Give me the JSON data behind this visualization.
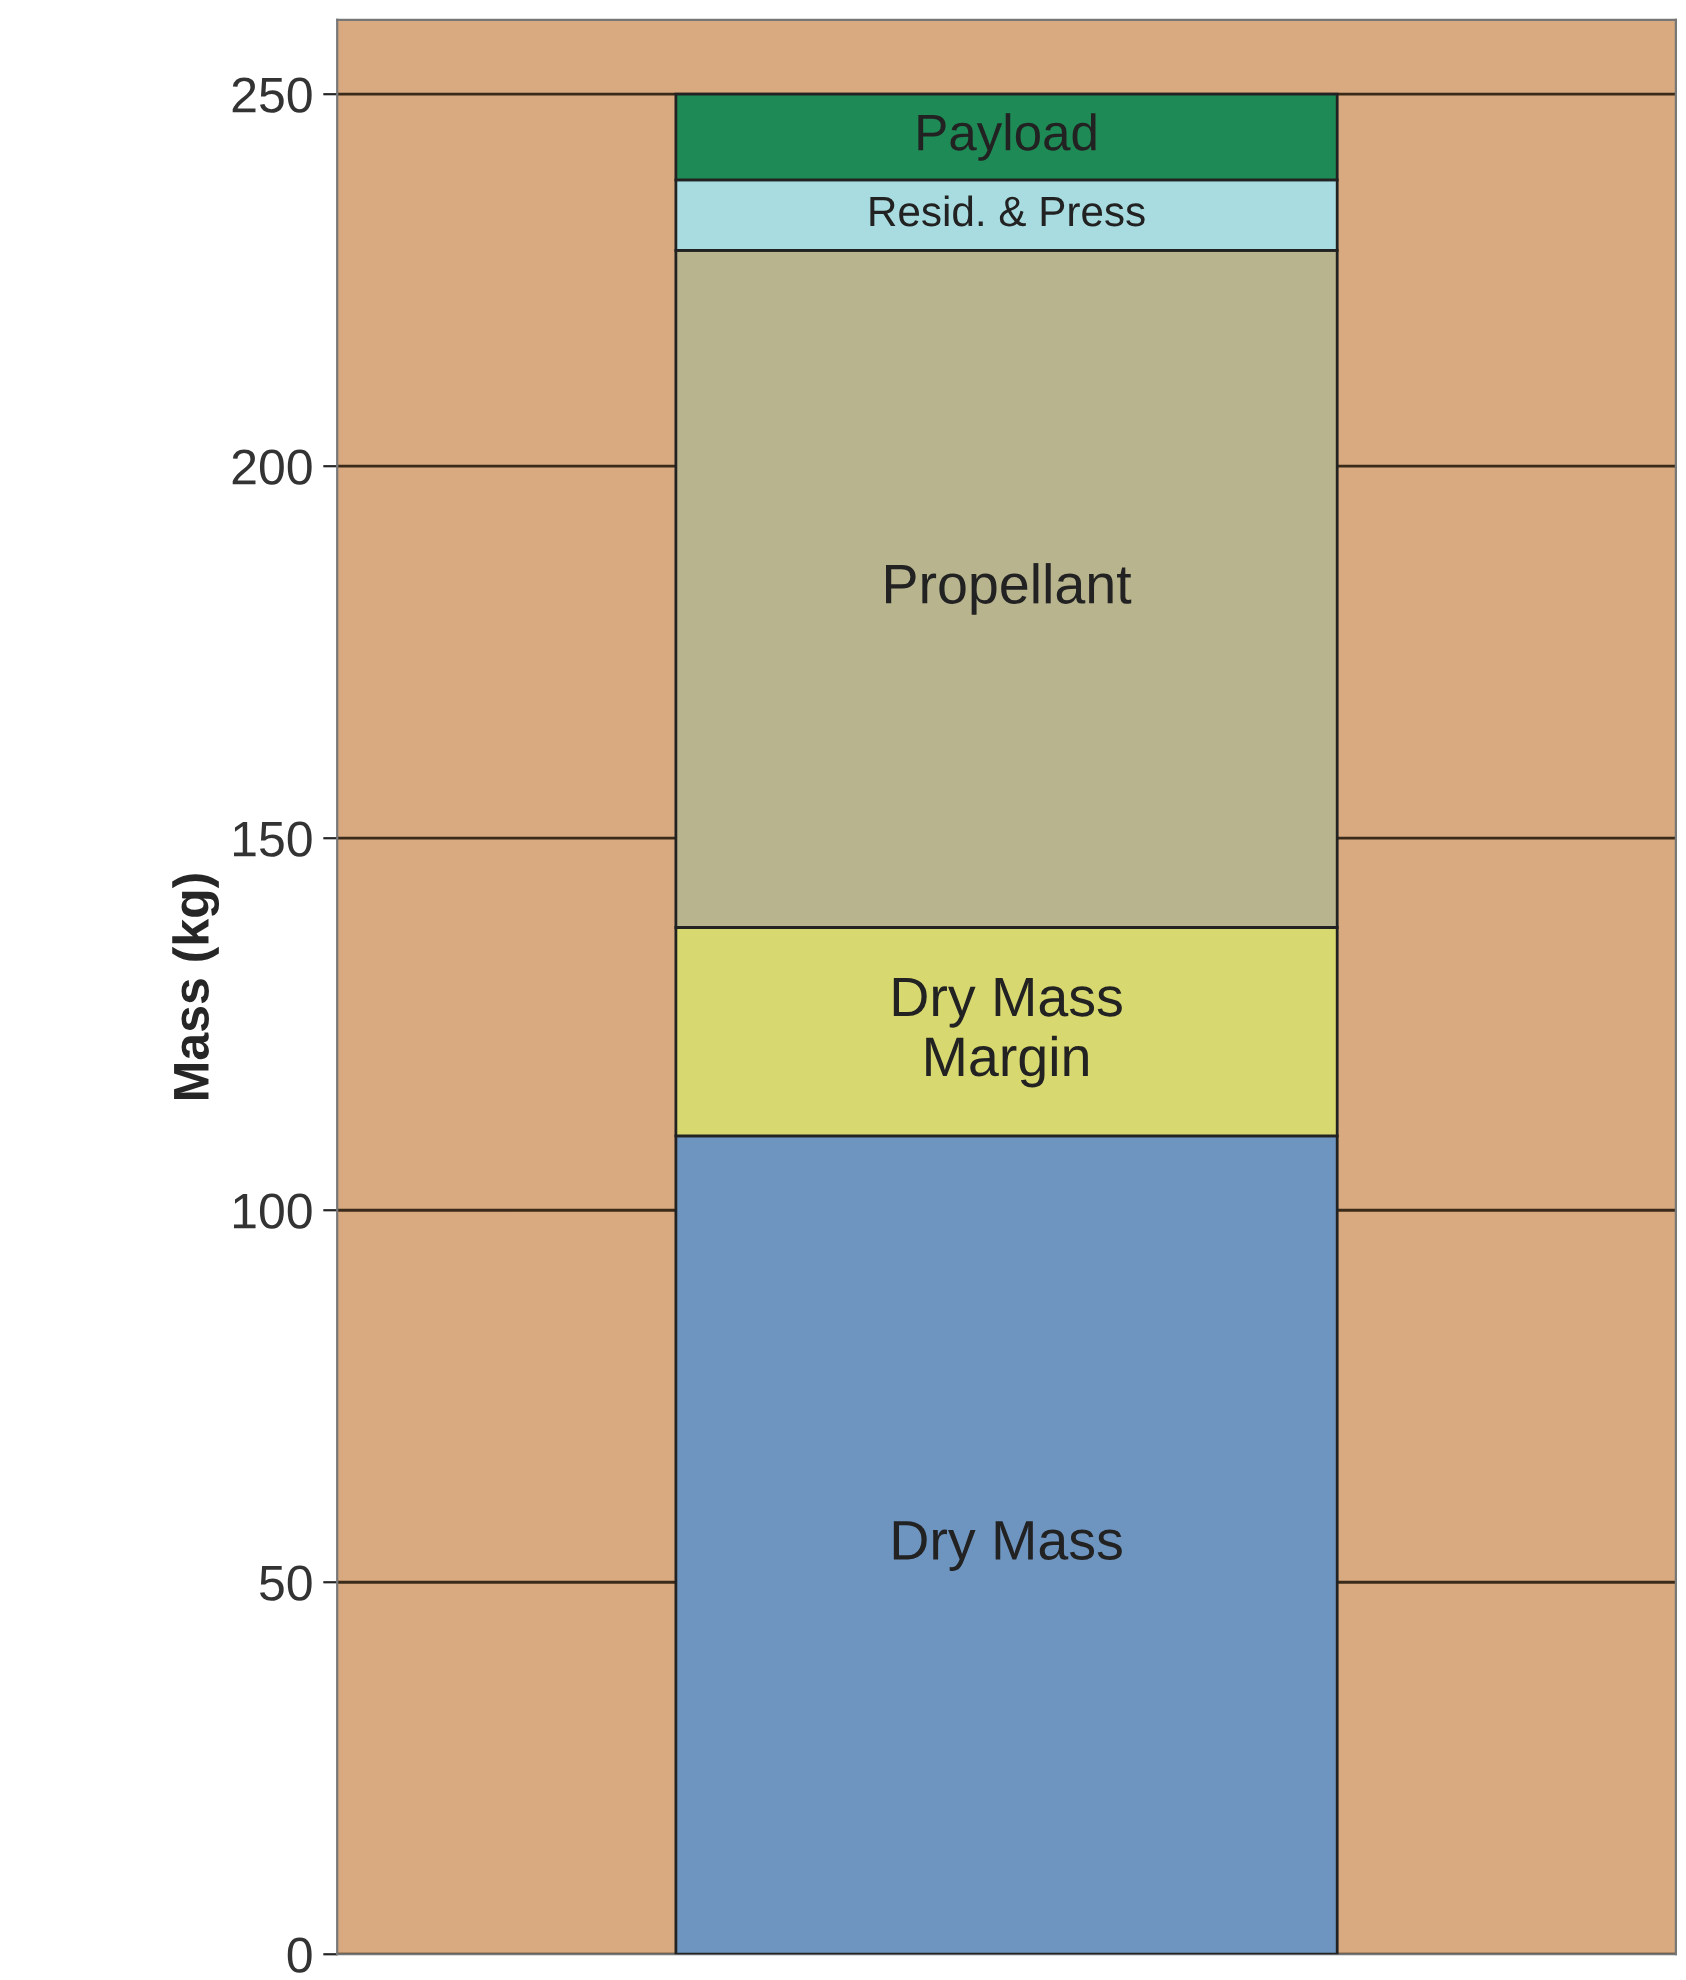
{
  "chart_data": {
    "type": "bar",
    "stacked": true,
    "categories": [
      null
    ],
    "ylabel": "Mass (kg)",
    "series": [
      {
        "name": "Dry Mass",
        "color": "#6e95c0",
        "values": [
          110
        ]
      },
      {
        "name": "Dry Mass\nMargin",
        "color": "#d8d870",
        "values": [
          28
        ]
      },
      {
        "name": "Propellant",
        "color": "#b8b48e",
        "values": [
          91
        ]
      },
      {
        "name": "Resid. & Press",
        "color": "#a8dce0",
        "values": [
          9.5
        ]
      },
      {
        "name": "Payload",
        "color": "#1e8a55",
        "values": [
          11.5
        ]
      }
    ],
    "ylim": [
      0,
      260
    ],
    "yticks": [
      0,
      50,
      100,
      150,
      200,
      250
    ],
    "grid": "y",
    "legend": false,
    "tick_labels": "y"
  }
}
